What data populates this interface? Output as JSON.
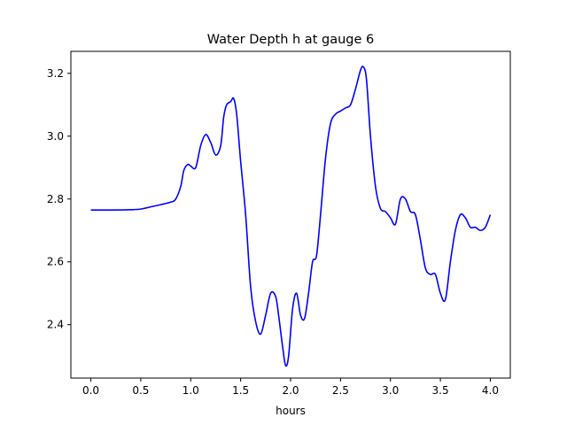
{
  "chart_data": {
    "type": "line",
    "title": "Water Depth h at gauge 6",
    "xlabel": "hours",
    "ylabel": "",
    "xlim": [
      -0.2,
      4.2
    ],
    "ylim": [
      2.23,
      3.27
    ],
    "xticks": [
      "0.0",
      "0.5",
      "1.0",
      "1.5",
      "2.0",
      "2.5",
      "3.0",
      "3.5",
      "4.0"
    ],
    "yticks": [
      "2.4",
      "2.6",
      "2.8",
      "3.0",
      "3.2"
    ],
    "grid": false,
    "series": [
      {
        "color": "#0000ff",
        "x": [
          0.0,
          0.2,
          0.4,
          0.5,
          0.6,
          0.7,
          0.8,
          0.85,
          0.9,
          0.93,
          0.97,
          1.0,
          1.05,
          1.1,
          1.15,
          1.2,
          1.25,
          1.3,
          1.33,
          1.36,
          1.4,
          1.43,
          1.46,
          1.5,
          1.55,
          1.6,
          1.65,
          1.7,
          1.75,
          1.8,
          1.85,
          1.88,
          1.92,
          1.95,
          1.98,
          2.02,
          2.06,
          2.1,
          2.14,
          2.18,
          2.22,
          2.26,
          2.3,
          2.35,
          2.4,
          2.45,
          2.5,
          2.55,
          2.6,
          2.65,
          2.7,
          2.73,
          2.76,
          2.8,
          2.85,
          2.9,
          2.95,
          3.0,
          3.05,
          3.1,
          3.15,
          3.2,
          3.25,
          3.3,
          3.35,
          3.4,
          3.45,
          3.5,
          3.55,
          3.6,
          3.65,
          3.7,
          3.75,
          3.8,
          3.85,
          3.9,
          3.95,
          4.0
        ],
        "y": [
          2.765,
          2.765,
          2.766,
          2.768,
          2.775,
          2.782,
          2.79,
          2.8,
          2.84,
          2.89,
          2.91,
          2.905,
          2.9,
          2.97,
          3.005,
          2.98,
          2.94,
          2.97,
          3.06,
          3.1,
          3.11,
          3.12,
          3.07,
          2.92,
          2.75,
          2.52,
          2.41,
          2.37,
          2.43,
          2.5,
          2.49,
          2.43,
          2.33,
          2.27,
          2.3,
          2.45,
          2.5,
          2.43,
          2.42,
          2.5,
          2.6,
          2.62,
          2.75,
          2.93,
          3.04,
          3.07,
          3.08,
          3.09,
          3.1,
          3.15,
          3.21,
          3.22,
          3.18,
          3.0,
          2.84,
          2.77,
          2.76,
          2.74,
          2.72,
          2.8,
          2.8,
          2.76,
          2.75,
          2.67,
          2.58,
          2.56,
          2.56,
          2.5,
          2.48,
          2.6,
          2.7,
          2.75,
          2.74,
          2.71,
          2.71,
          2.7,
          2.71,
          2.75
        ]
      }
    ]
  }
}
